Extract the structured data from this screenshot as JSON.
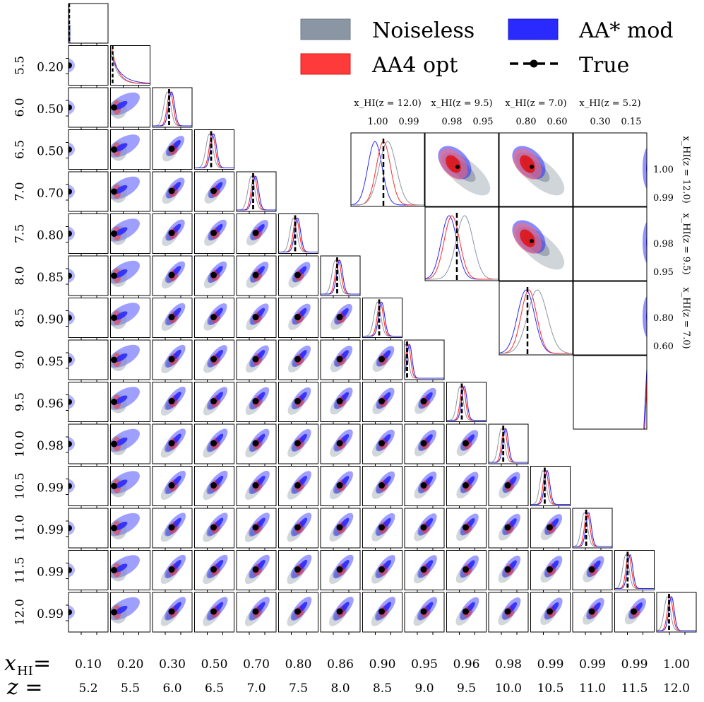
{
  "chart_data": {
    "type": "corner-plot",
    "title": "",
    "parameter_symbol": "x_HI",
    "row_label_z": "z =",
    "row_label_x": "x",
    "row_label_x_sub": "HI",
    "row_label_eq": " =",
    "redshifts": [
      "5.2",
      "5.5",
      "6.0",
      "6.5",
      "7.0",
      "7.5",
      "8.0",
      "8.5",
      "9.0",
      "9.5",
      "10.0",
      "10.5",
      "11.0",
      "11.5",
      "12.0"
    ],
    "true_values": [
      "0.10",
      "0.20",
      "0.30",
      "0.50",
      "0.70",
      "0.80",
      "0.86",
      "0.90",
      "0.95",
      "0.96",
      "0.98",
      "0.99",
      "0.99",
      "0.99",
      "1.00"
    ],
    "row_tick_labels": [
      "0.20",
      "0.50",
      "0.50",
      "0.70",
      "0.80",
      "0.85",
      "0.90",
      "0.95",
      "0.96",
      "0.98",
      "0.99",
      "0.99",
      "0.99",
      "0.99"
    ],
    "series": [
      {
        "name": "Noiseless",
        "color": "#8a96a3"
      },
      {
        "name": "AA4 opt",
        "color": "#ff2a2a"
      },
      {
        "name": "AA* mod",
        "color": "#2a2aff"
      },
      {
        "name": "True",
        "color": "#000000"
      }
    ],
    "inset": {
      "parameters": [
        "12.0",
        "9.5",
        "7.0",
        "5.2"
      ],
      "column_titles": [
        "x_HI(z = 12.0)",
        "x_HI(z = 9.5)",
        "x_HI(z = 7.0)",
        "x_HI(z = 5.2)"
      ],
      "x_ticks": [
        [
          "1.00",
          "0.99"
        ],
        [
          "0.98",
          "0.95"
        ],
        [
          "0.80",
          "0.60"
        ],
        [
          "0.30",
          "0.15"
        ]
      ],
      "y_ticks": [
        [
          "1.00",
          "0.99"
        ],
        [
          "0.98",
          "0.95"
        ],
        [
          "0.80",
          "0.60"
        ]
      ],
      "row_titles": [
        "x_HI(z = 12.0)",
        "x_HI(z = 9.5)",
        "x_HI(z = 7.0)"
      ]
    }
  },
  "legend": {
    "noiseless": "Noiseless",
    "aa4": "AA4 opt",
    "aastar": "AA* mod",
    "true": "True"
  },
  "colors": {
    "noiseless": "#8a96a3",
    "aa4": "#ff2a2a",
    "aastar": "#2a2aff",
    "true": "#000000"
  }
}
